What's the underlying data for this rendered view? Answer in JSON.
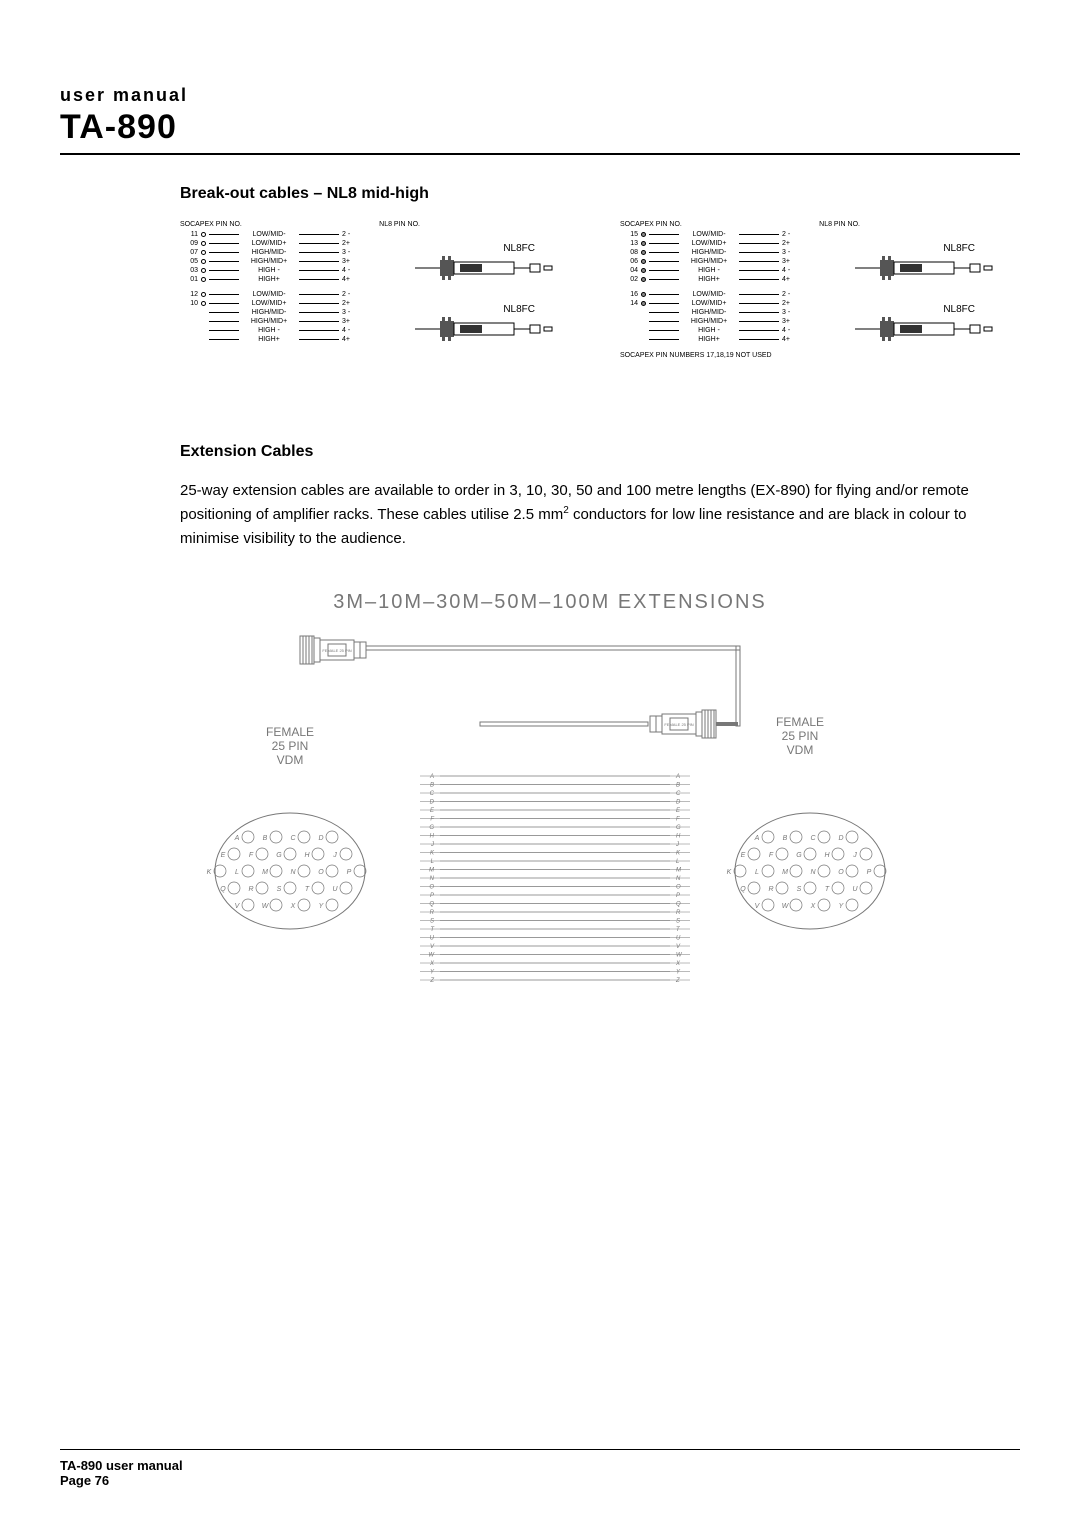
{
  "header": {
    "super": "user manual",
    "model": "TA-890"
  },
  "section1": {
    "heading": "Break-out cables – NL8 mid-high",
    "col_socapex": "SOCAPEX PIN NO.",
    "col_nl8": "NL8 PIN NO.",
    "conn_label": "NL8FC",
    "left": {
      "groupA": [
        {
          "pin": "11",
          "sig": "LOW/MID-",
          "nl8": "2 -"
        },
        {
          "pin": "09",
          "sig": "LOW/MID+",
          "nl8": "2+"
        },
        {
          "pin": "07",
          "sig": "HIGH/MID-",
          "nl8": "3 -"
        },
        {
          "pin": "05",
          "sig": "HIGH/MID+",
          "nl8": "3+"
        },
        {
          "pin": "03",
          "sig": "HIGH -",
          "nl8": "4 -"
        },
        {
          "pin": "01",
          "sig": "HIGH+",
          "nl8": "4+"
        }
      ],
      "groupB": [
        {
          "pin": "12",
          "sig": "LOW/MID-",
          "nl8": "2 -"
        },
        {
          "pin": "10",
          "sig": "LOW/MID+",
          "nl8": "2+"
        },
        {
          "pin": "",
          "sig": "HIGH/MID-",
          "nl8": "3 -"
        },
        {
          "pin": "",
          "sig": "HIGH/MID+",
          "nl8": "3+"
        },
        {
          "pin": "",
          "sig": "HIGH -",
          "nl8": "4 -"
        },
        {
          "pin": "",
          "sig": "HIGH+",
          "nl8": "4+"
        }
      ]
    },
    "right": {
      "groupA": [
        {
          "pin": "15",
          "sig": "LOW/MID-",
          "nl8": "2 -"
        },
        {
          "pin": "13",
          "sig": "LOW/MID+",
          "nl8": "2+"
        },
        {
          "pin": "08",
          "sig": "HIGH/MID-",
          "nl8": "3 -"
        },
        {
          "pin": "06",
          "sig": "HIGH/MID+",
          "nl8": "3+"
        },
        {
          "pin": "04",
          "sig": "HIGH -",
          "nl8": "4 -"
        },
        {
          "pin": "02",
          "sig": "HIGH+",
          "nl8": "4+"
        }
      ],
      "groupB": [
        {
          "pin": "16",
          "sig": "LOW/MID-",
          "nl8": "2 -"
        },
        {
          "pin": "14",
          "sig": "LOW/MID+",
          "nl8": "2+"
        },
        {
          "pin": "",
          "sig": "HIGH/MID-",
          "nl8": "3 -"
        },
        {
          "pin": "",
          "sig": "HIGH/MID+",
          "nl8": "3+"
        },
        {
          "pin": "",
          "sig": "HIGH -",
          "nl8": "4 -"
        },
        {
          "pin": "",
          "sig": "HIGH+",
          "nl8": "4+"
        }
      ],
      "note": "SOCAPEX PIN NUMBERS 17,18,19 NOT USED"
    }
  },
  "section2": {
    "heading": "Extension Cables",
    "body_parts": {
      "a": "25-way extension cables are available to order in 3, 10, 30, 50 and 100 metre lengths (EX-890) for flying and/or remote positioning of amplifier racks. These cables utilise 2.5 mm",
      "b": " conductors for low line resistance and are black in colour to minimise visibility to the audience."
    },
    "diagram_title": "3M–10M–30M–50M–100M  EXTENSIONS",
    "side_label_lines": [
      "FEMALE",
      "25 PIN",
      "VDM"
    ],
    "pin_letters": [
      "A",
      "B",
      "C",
      "D",
      "E",
      "F",
      "G",
      "H",
      "J",
      "K",
      "L",
      "M",
      "N",
      "O",
      "P",
      "Q",
      "R",
      "S",
      "T",
      "U",
      "V",
      "W",
      "X",
      "Y",
      "Z"
    ]
  },
  "footer": {
    "line1": "TA-890 user manual",
    "line2": "Page 76"
  },
  "colors": {
    "text": "#000000",
    "rule": "#000000",
    "diagram_gray": "#777777",
    "bg": "#ffffff"
  }
}
